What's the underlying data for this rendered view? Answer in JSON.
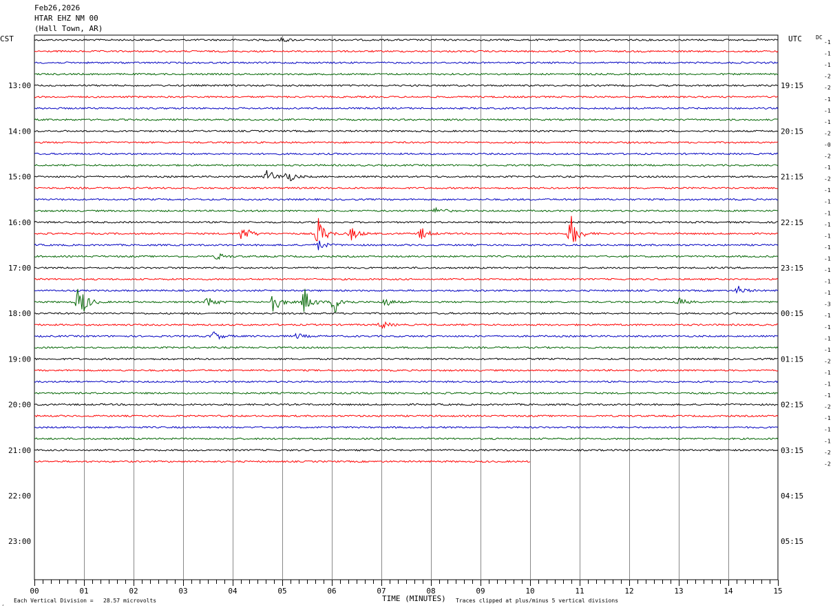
{
  "header": {
    "date": "Feb26,2026",
    "station": "HTAR EHZ NM 00",
    "location": "(Hall Town, AR)"
  },
  "left_tz": "CST",
  "right_tz": "UTC",
  "dc_label": "DC",
  "footer": {
    "vertical_division": "Each Vertical Division =   28.57 microvolts",
    "xlabel": "TIME (MINUTES)",
    "clip_note": "Traces clipped at plus/minus 5 vertical divisions",
    "corner_mark": "¸"
  },
  "chart_data": {
    "type": "line",
    "title": "HTAR EHZ NM 00",
    "xlabel": "TIME (MINUTES)",
    "xlim": [
      0,
      15
    ],
    "x_ticks": [
      "00",
      "01",
      "02",
      "03",
      "04",
      "05",
      "06",
      "07",
      "08",
      "09",
      "10",
      "11",
      "12",
      "13",
      "14",
      "15"
    ],
    "left_hour_labels": [
      "13:00",
      "14:00",
      "15:00",
      "16:00",
      "17:00",
      "18:00",
      "19:00",
      "20:00",
      "21:00",
      "22:00",
      "23:00"
    ],
    "right_hour_labels": [
      "19:15",
      "20:15",
      "21:15",
      "22:15",
      "23:15",
      "00:15",
      "01:15",
      "02:15",
      "03:15",
      "04:15",
      "05:15"
    ],
    "trace_colors": [
      "#000000",
      "#ff0000",
      "#0000c0",
      "#006400"
    ],
    "trace_count": 38,
    "last_trace_end_minute": 10,
    "dc_offsets": [
      "-1",
      "-1",
      "-1",
      "-2",
      "-2",
      "-1",
      "-1",
      "-1",
      "-2",
      "-0",
      "-2",
      "-1",
      "-2",
      "-1",
      "-1",
      "-1",
      "-1",
      "-1",
      "-1",
      "-1",
      "-1",
      "-1",
      "-1",
      "-3",
      "-1",
      "-1",
      "-1",
      "-1",
      "-2",
      "-1",
      "-1",
      "-1",
      "-2",
      "-1",
      "-1",
      "-1",
      "-2",
      "-2"
    ],
    "events": [
      {
        "trace": 0,
        "minute": 5.0,
        "amplitude": 3
      },
      {
        "trace": 12,
        "minute": 4.7,
        "amplitude": 12
      },
      {
        "trace": 12,
        "minute": 5.1,
        "amplitude": 9
      },
      {
        "trace": 15,
        "minute": 8.1,
        "amplitude": 6
      },
      {
        "trace": 17,
        "minute": 4.2,
        "amplitude": 14
      },
      {
        "trace": 17,
        "minute": 5.72,
        "amplitude": 24
      },
      {
        "trace": 17,
        "minute": 6.4,
        "amplitude": 10
      },
      {
        "trace": 17,
        "minute": 7.8,
        "amplitude": 9
      },
      {
        "trace": 17,
        "minute": 10.82,
        "amplitude": 28
      },
      {
        "trace": 18,
        "minute": 5.72,
        "amplitude": 8
      },
      {
        "trace": 19,
        "minute": 3.7,
        "amplitude": 5
      },
      {
        "trace": 22,
        "minute": 14.2,
        "amplitude": 6
      },
      {
        "trace": 23,
        "minute": 0.9,
        "amplitude": 30
      },
      {
        "trace": 23,
        "minute": 3.5,
        "amplitude": 9
      },
      {
        "trace": 23,
        "minute": 4.8,
        "amplitude": 18
      },
      {
        "trace": 23,
        "minute": 5.45,
        "amplitude": 20
      },
      {
        "trace": 23,
        "minute": 6.05,
        "amplitude": 18
      },
      {
        "trace": 23,
        "minute": 7.05,
        "amplitude": 8
      },
      {
        "trace": 23,
        "minute": 13.0,
        "amplitude": 6
      },
      {
        "trace": 25,
        "minute": 7.0,
        "amplitude": 6
      },
      {
        "trace": 26,
        "minute": 3.6,
        "amplitude": 8
      },
      {
        "trace": 26,
        "minute": 5.3,
        "amplitude": 4
      }
    ]
  }
}
